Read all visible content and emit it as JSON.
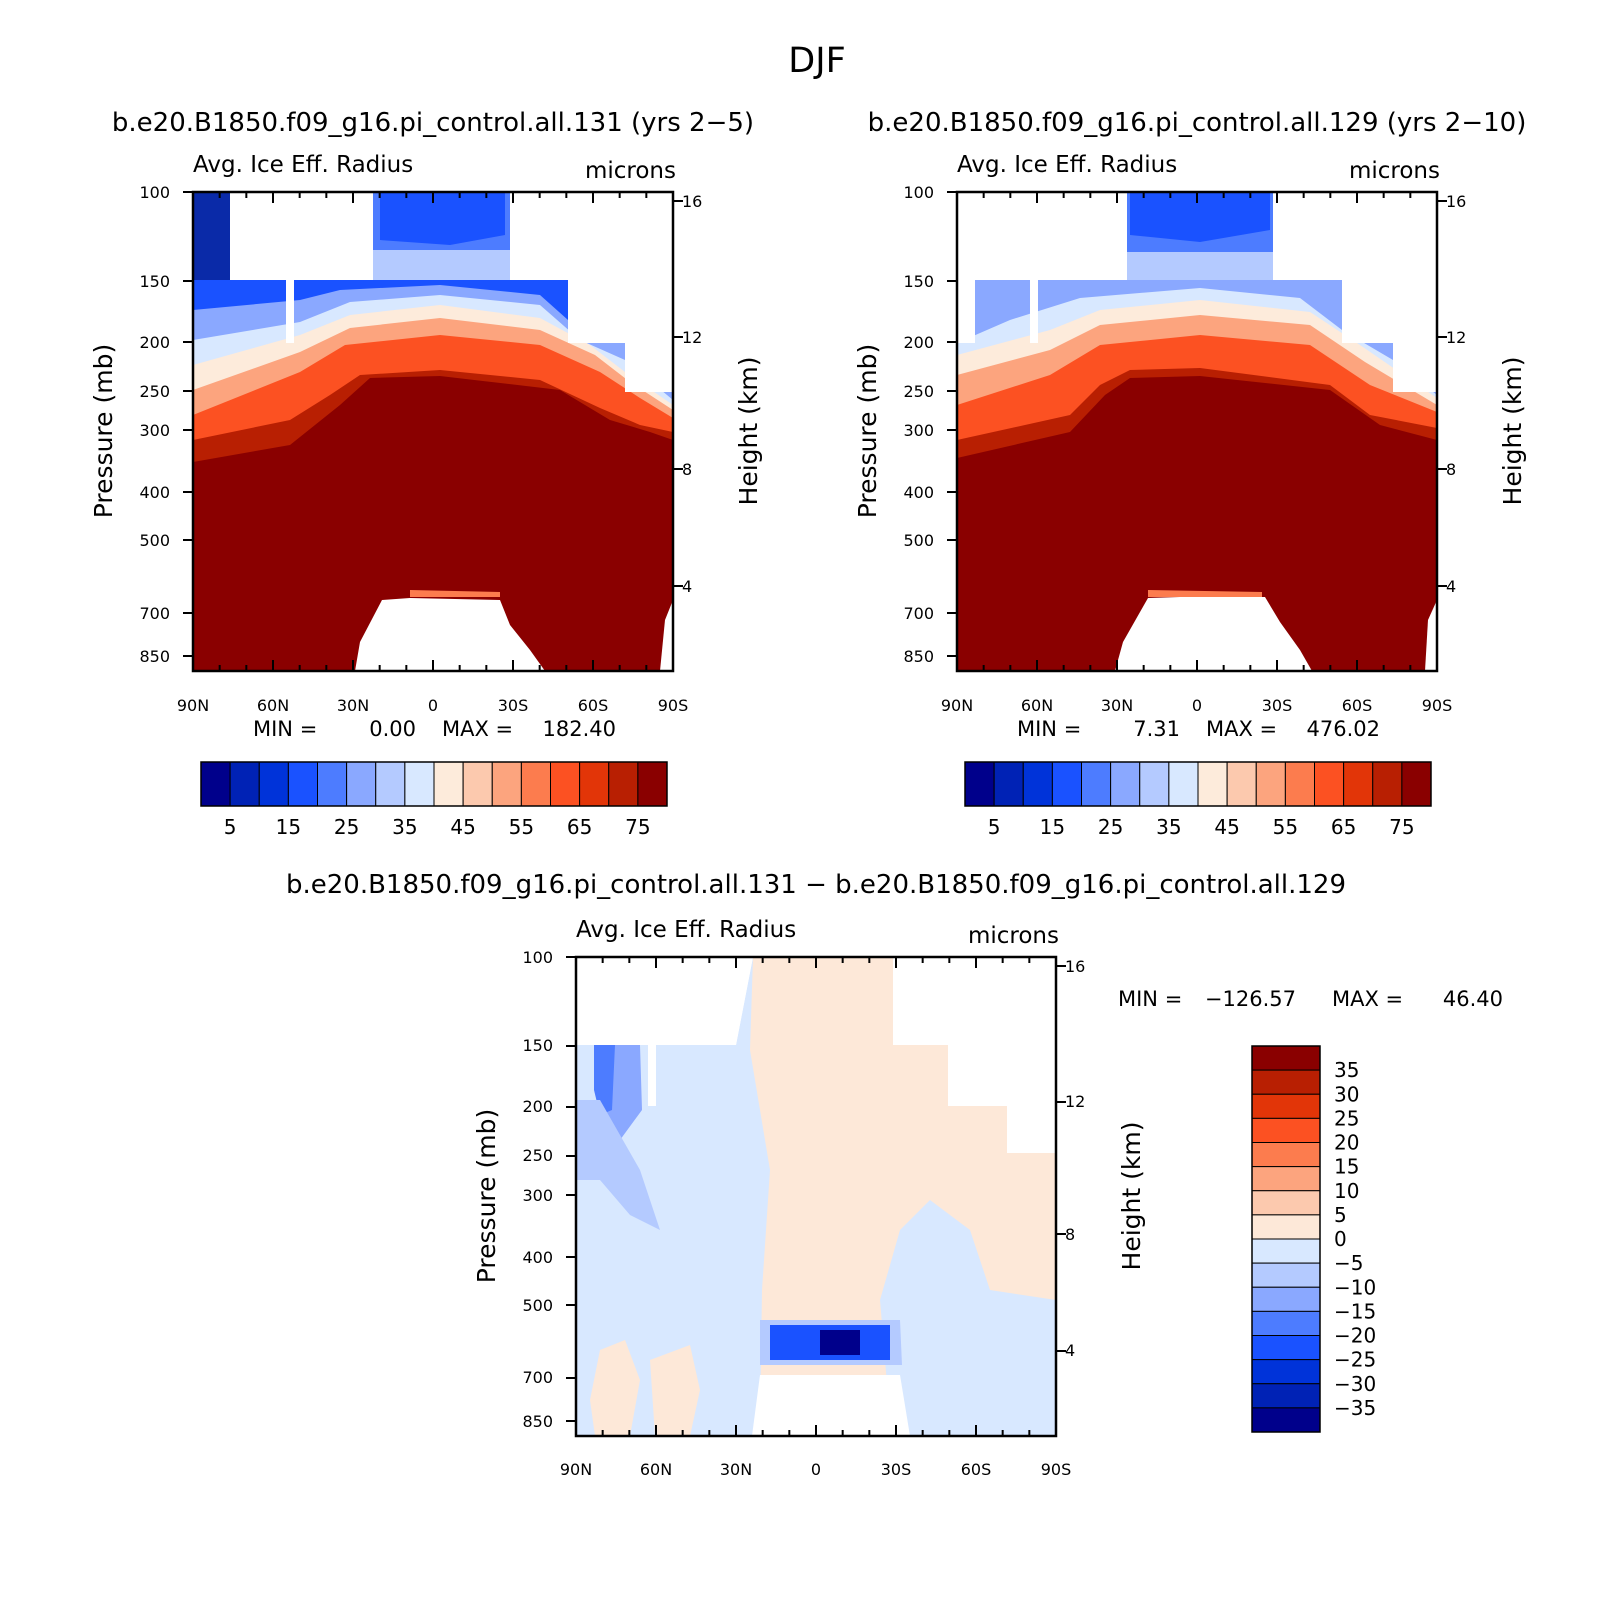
{
  "figure": {
    "season_title": "DJF",
    "diff_title": "b.e20.B1850.f09_g16.pi_control.all.131 − b.e20.B1850.f09_g16.pi_control.all.129"
  },
  "chart_data": [
    {
      "type": "heatmap",
      "title": "b.e20.B1850.f09_g16.pi_control.all.131 (yrs 2−5)",
      "variable": "Avg. Ice Eff. Radius",
      "units": "microns",
      "xlabel": "",
      "ylabel": "Pressure (mb)",
      "ylabel_right": "Height (km)",
      "x_ticks": [
        "90N",
        "60N",
        "30N",
        "0",
        "30S",
        "60S",
        "90S"
      ],
      "y_ticks": [
        "100",
        "150",
        "200",
        "250",
        "300",
        "400",
        "500",
        "700",
        "850"
      ],
      "y_right_ticks": [
        "16",
        "12",
        "8",
        "4"
      ],
      "min_label": "MIN =",
      "min_value": "0.00",
      "max_label": "MAX =",
      "max_value": "182.40",
      "colorbar_labels": [
        "5",
        "15",
        "25",
        "35",
        "45",
        "55",
        "65",
        "75"
      ],
      "colors": [
        "#00008b",
        "#0022b5",
        "#0033d9",
        "#1a52ff",
        "#4d7cff",
        "#8aa8ff",
        "#b4caff",
        "#d8e8ff",
        "#fdebdb",
        "#fcc9ae",
        "#fca47e",
        "#fc7c4e",
        "#fc5122",
        "#e23508",
        "#b81f02",
        "#8a0000"
      ]
    },
    {
      "type": "heatmap",
      "title": "b.e20.B1850.f09_g16.pi_control.all.129 (yrs 2−10)",
      "variable": "Avg. Ice Eff. Radius",
      "units": "microns",
      "xlabel": "",
      "ylabel": "Pressure (mb)",
      "ylabel_right": "Height (km)",
      "x_ticks": [
        "90N",
        "60N",
        "30N",
        "0",
        "30S",
        "60S",
        "90S"
      ],
      "y_ticks": [
        "100",
        "150",
        "200",
        "250",
        "300",
        "400",
        "500",
        "700",
        "850"
      ],
      "y_right_ticks": [
        "16",
        "12",
        "8",
        "4"
      ],
      "min_label": "MIN =",
      "min_value": "7.31",
      "max_label": "MAX =",
      "max_value": "476.02",
      "colorbar_labels": [
        "5",
        "15",
        "25",
        "35",
        "45",
        "55",
        "65",
        "75"
      ],
      "colors": [
        "#00008b",
        "#0022b5",
        "#0033d9",
        "#1a52ff",
        "#4d7cff",
        "#8aa8ff",
        "#b4caff",
        "#d8e8ff",
        "#fdebdb",
        "#fcc9ae",
        "#fca47e",
        "#fc7c4e",
        "#fc5122",
        "#e23508",
        "#b81f02",
        "#8a0000"
      ]
    },
    {
      "type": "heatmap",
      "title": "b.e20.B1850.f09_g16.pi_control.all.131 − b.e20.B1850.f09_g16.pi_control.all.129",
      "variable": "Avg. Ice Eff. Radius",
      "units": "microns",
      "xlabel": "",
      "ylabel": "Pressure (mb)",
      "ylabel_right": "Height (km)",
      "x_ticks": [
        "90N",
        "60N",
        "30N",
        "0",
        "30S",
        "60S",
        "90S"
      ],
      "y_ticks": [
        "100",
        "150",
        "200",
        "250",
        "300",
        "400",
        "500",
        "700",
        "850"
      ],
      "y_right_ticks": [
        "16",
        "12",
        "8",
        "4"
      ],
      "min_label": "MIN =",
      "min_value": "−126.57",
      "max_label": "MAX =",
      "max_value": "46.40",
      "colorbar_labels": [
        "35",
        "30",
        "25",
        "20",
        "15",
        "10",
        "5",
        "0",
        "−5",
        "−10",
        "−15",
        "−20",
        "−25",
        "−30",
        "−35"
      ],
      "colors": [
        "#8a0000",
        "#b81f02",
        "#e23508",
        "#fc5122",
        "#fc7c4e",
        "#fca47e",
        "#fcc9ae",
        "#fde8d8",
        "#d8e8ff",
        "#b4caff",
        "#8aa8ff",
        "#4d7cff",
        "#1a52ff",
        "#0033d9",
        "#0022b5",
        "#00008b"
      ]
    }
  ]
}
